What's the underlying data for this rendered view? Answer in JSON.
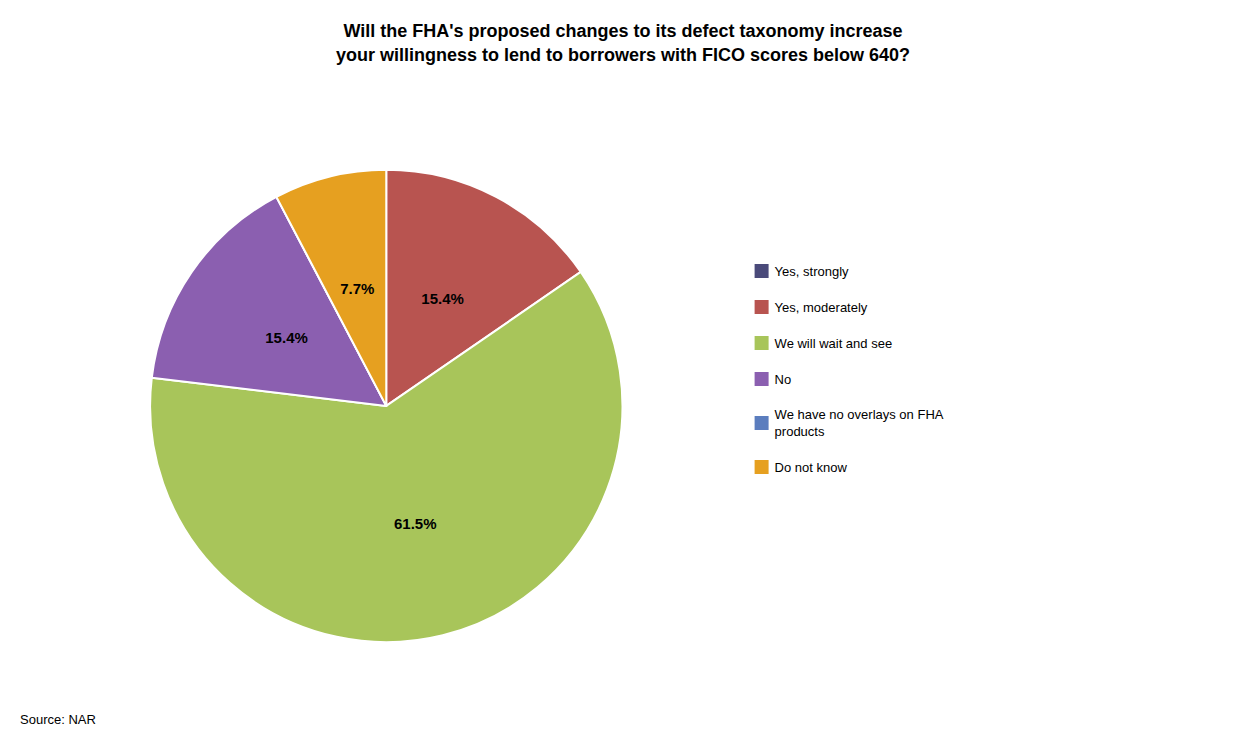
{
  "chart_data": {
    "type": "pie",
    "title": "Will the FHA's proposed changes to its defect taxonomy increase\nyour willingness to lend to borrowers with FICO scores below 640?",
    "categories": [
      "Yes, strongly",
      "Yes, moderately",
      "We will wait and see",
      "No",
      "We have no overlays on FHA\nproducts",
      "Do not know"
    ],
    "values": [
      0.001,
      15.4,
      61.5,
      15.4,
      0.001,
      7.7
    ],
    "value_labels": [
      null,
      "15.4%",
      "61.5%",
      "15.4%",
      null,
      "7.7%"
    ],
    "colors": [
      "#4a4a7a",
      "#b85450",
      "#a8c55a",
      "#8b5fb0",
      "#5b7dbe",
      "#e6a020"
    ],
    "data_labels": true,
    "legend": "right",
    "annotations": [
      "Source: NAR"
    ]
  }
}
